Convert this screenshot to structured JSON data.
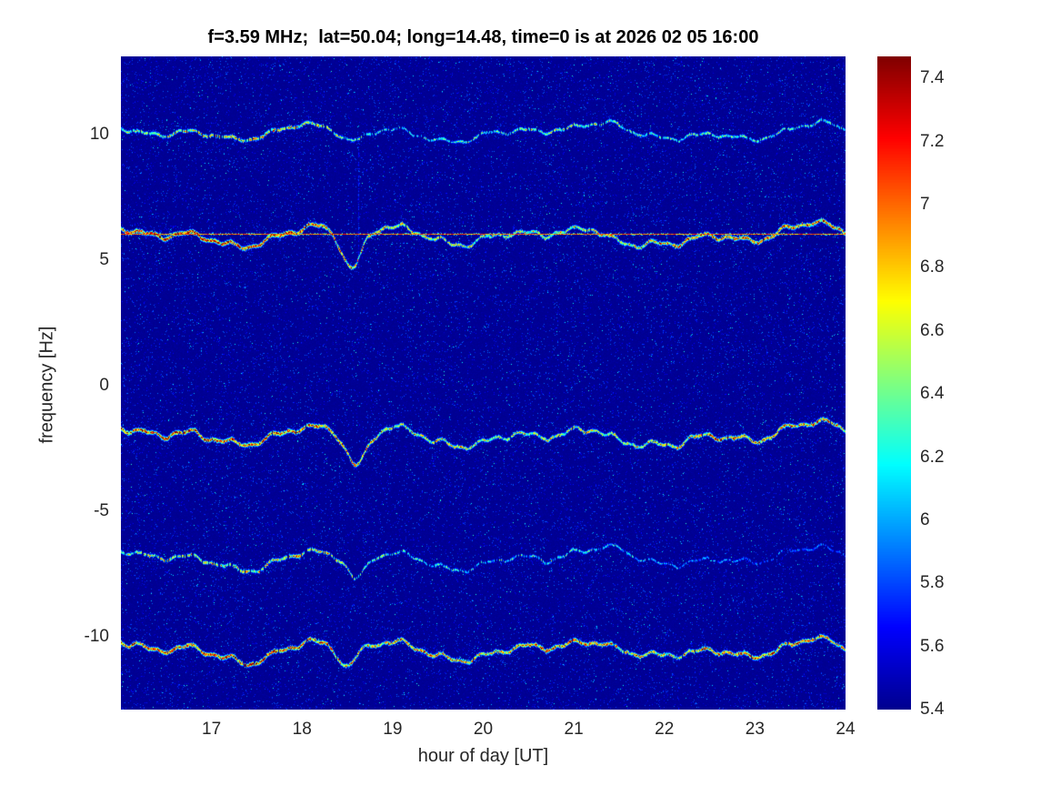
{
  "chart_data": {
    "type": "heatmap",
    "title": "f=3.59 MHz;  lat=50.04; long=14.48, time=0 is at 2026 02 05 16:00",
    "xlabel": "hour of day [UT]",
    "ylabel": "frequency [Hz]",
    "xlim": [
      16,
      24
    ],
    "ylim": [
      -12.9,
      13.1
    ],
    "xticks": [
      17,
      18,
      19,
      20,
      21,
      22,
      23,
      24
    ],
    "yticks": [
      -10,
      -5,
      0,
      5,
      10
    ],
    "colorbar": {
      "min": 5.4,
      "max": 7.47,
      "ticks": [
        5.4,
        5.6,
        5.8,
        6,
        6.2,
        6.4,
        6.6,
        6.8,
        7,
        7.2,
        7.4
      ],
      "colormap": "jet"
    },
    "background_value_range": [
      5.4,
      5.55
    ],
    "carrier_line": {
      "freq_hz": 6.05,
      "intensity": 0.75
    },
    "vertical_streaks": [
      {
        "hour": 18.62,
        "freq_range": [
          4.8,
          9.9
        ],
        "intensity": 0.16
      }
    ],
    "traces": [
      {
        "name": "trace-plus10",
        "center_freq_hz": 10.05,
        "wiggle_amp_hz": 0.22,
        "profile": [
          [
            16,
            0.5
          ],
          [
            16.8,
            0.62
          ],
          [
            17.6,
            0.68
          ],
          [
            18.3,
            0.6
          ],
          [
            18.9,
            0.38
          ],
          [
            19.6,
            0.42
          ],
          [
            20.4,
            0.5
          ],
          [
            21.2,
            0.55
          ],
          [
            22,
            0.42
          ],
          [
            23,
            0.48
          ],
          [
            24,
            0.45
          ]
        ],
        "dips": [
          {
            "center": 18.55,
            "depth": 0.5,
            "width": 0.2
          }
        ],
        "gap_prob": 0.25
      },
      {
        "name": "trace-plus6",
        "center_freq_hz": 6.02,
        "wiggle_amp_hz": 0.28,
        "profile": [
          [
            16,
            0.9
          ],
          [
            17,
            0.95
          ],
          [
            18.3,
            0.88
          ],
          [
            19,
            0.62
          ],
          [
            20,
            0.58
          ],
          [
            21,
            0.6
          ],
          [
            21.8,
            0.72
          ],
          [
            22.5,
            0.82
          ],
          [
            23.2,
            0.85
          ],
          [
            24,
            0.8
          ]
        ],
        "dips": [
          {
            "center": 18.55,
            "depth": 1.5,
            "width": 0.15
          },
          {
            "center": 21.5,
            "depth": 0.6,
            "width": 0.3
          }
        ],
        "gap_prob": 0.03
      },
      {
        "name": "trace-minus2",
        "center_freq_hz": -1.95,
        "wiggle_amp_hz": 0.3,
        "profile": [
          [
            16,
            0.88
          ],
          [
            17,
            0.92
          ],
          [
            18.3,
            0.9
          ],
          [
            19,
            0.62
          ],
          [
            20,
            0.6
          ],
          [
            21,
            0.62
          ],
          [
            21.6,
            0.55
          ],
          [
            22.2,
            0.78
          ],
          [
            23,
            0.82
          ],
          [
            24,
            0.78
          ]
        ],
        "dips": [
          {
            "center": 18.6,
            "depth": 1.4,
            "width": 0.15
          },
          {
            "center": 21.5,
            "depth": 0.6,
            "width": 0.3
          }
        ],
        "gap_prob": 0.03
      },
      {
        "name": "trace-minus7",
        "center_freq_hz": -6.8,
        "wiggle_amp_hz": 0.25,
        "profile": [
          [
            16,
            0.55
          ],
          [
            17,
            0.62
          ],
          [
            17.9,
            0.72
          ],
          [
            18.4,
            0.58
          ],
          [
            19.2,
            0.42
          ],
          [
            20,
            0.38
          ],
          [
            20.8,
            0.45
          ],
          [
            21.5,
            0.35
          ],
          [
            22.3,
            0.3
          ],
          [
            23.2,
            0.26
          ],
          [
            24,
            0.25
          ]
        ],
        "dips": [
          {
            "center": 18.6,
            "depth": 0.9,
            "width": 0.13
          }
        ],
        "gap_prob": 0.3
      },
      {
        "name": "trace-minus10",
        "center_freq_hz": -10.45,
        "wiggle_amp_hz": 0.28,
        "profile": [
          [
            16,
            0.82
          ],
          [
            16.8,
            0.88
          ],
          [
            17.8,
            0.92
          ],
          [
            18.5,
            0.72
          ],
          [
            19.2,
            0.78
          ],
          [
            20,
            0.72
          ],
          [
            20.8,
            0.82
          ],
          [
            21.5,
            0.68
          ],
          [
            22.2,
            0.68
          ],
          [
            22.9,
            0.82
          ],
          [
            23.6,
            0.78
          ],
          [
            24,
            0.72
          ]
        ],
        "dips": [
          {
            "center": 18.5,
            "depth": 0.8,
            "width": 0.12
          },
          {
            "center": 21.5,
            "depth": 0.4,
            "width": 0.3
          }
        ],
        "gap_prob": 0.05
      }
    ]
  }
}
